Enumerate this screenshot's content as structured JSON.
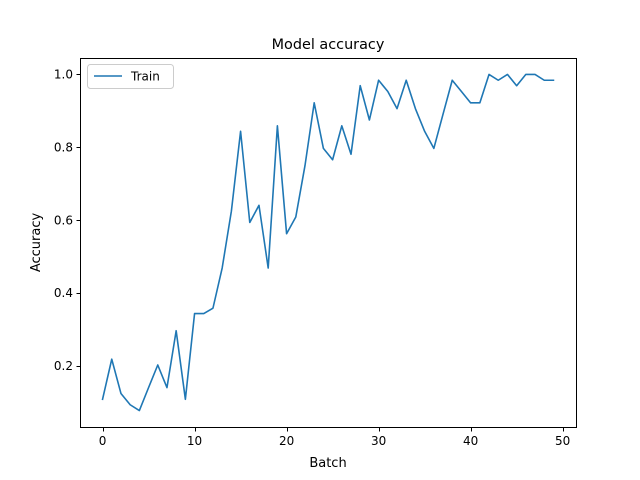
{
  "chart_data": {
    "type": "line",
    "title": "Model accuracy",
    "xlabel": "Batch",
    "ylabel": "Accuracy",
    "xlim": [
      -2.45,
      51.45
    ],
    "ylim": [
      0.033,
      1.045
    ],
    "xticks": [
      0,
      10,
      20,
      30,
      40,
      50
    ],
    "yticks": [
      0.2,
      0.4,
      0.6,
      0.8,
      1.0
    ],
    "xtick_labels": [
      "0",
      "10",
      "20",
      "30",
      "40",
      "50"
    ],
    "ytick_labels": [
      "0.2",
      "0.4",
      "0.6",
      "0.8",
      "1.0"
    ],
    "grid": false,
    "legend": {
      "position": "top-left",
      "entries": [
        "Train"
      ]
    },
    "series": [
      {
        "name": "Train",
        "color": "#1f77b4",
        "x": [
          0,
          1,
          2,
          3,
          4,
          5,
          6,
          7,
          8,
          9,
          10,
          11,
          12,
          13,
          14,
          15,
          16,
          17,
          18,
          19,
          20,
          21,
          22,
          23,
          24,
          25,
          26,
          27,
          28,
          29,
          30,
          31,
          32,
          33,
          34,
          35,
          36,
          37,
          38,
          39,
          40,
          41,
          42,
          43,
          44,
          45,
          46,
          47,
          48,
          49
        ],
        "y": [
          0.109,
          0.219,
          0.125,
          0.094,
          0.078,
          0.141,
          0.203,
          0.141,
          0.297,
          0.109,
          0.344,
          0.344,
          0.359,
          0.469,
          0.625,
          0.844,
          0.594,
          0.641,
          0.469,
          0.859,
          0.563,
          0.609,
          0.75,
          0.922,
          0.797,
          0.766,
          0.859,
          0.781,
          0.969,
          0.875,
          0.984,
          0.953,
          0.906,
          0.984,
          0.906,
          0.844,
          0.797,
          0.891,
          0.984,
          0.953,
          0.922,
          0.922,
          1.0,
          0.984,
          1.0,
          0.969,
          1.0,
          1.0,
          0.984,
          0.984
        ]
      }
    ]
  }
}
